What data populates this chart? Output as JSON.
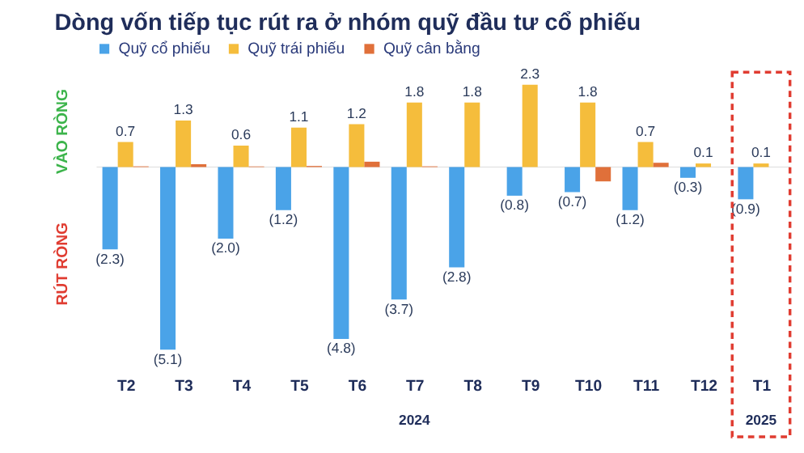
{
  "chart_data": {
    "type": "bar",
    "title": "Dòng vốn tiếp tục rút ra ở nhóm quỹ đầu tư cổ phiếu",
    "categories": [
      "T2",
      "T3",
      "T4",
      "T5",
      "T6",
      "T7",
      "T8",
      "T9",
      "T10",
      "T11",
      "T12",
      "T1"
    ],
    "series": [
      {
        "name": "Quỹ cổ phiếu",
        "color": "#4aa3e8",
        "values": [
          -2.3,
          -5.1,
          -2.0,
          -1.2,
          -4.8,
          -3.7,
          -2.8,
          -0.8,
          -0.7,
          -1.2,
          -0.3,
          -0.9
        ],
        "value_labels": [
          "(2.3)",
          "(5.1)",
          "(2.0)",
          "(1.2)",
          "(4.8)",
          "(3.7)",
          "(2.8)",
          "(0.8)",
          "(0.7)",
          "(1.2)",
          "(0.3)",
          "(0.9)"
        ]
      },
      {
        "name": "Quỹ trái phiếu",
        "color": "#f5bd3c",
        "values": [
          0.7,
          1.3,
          0.6,
          1.1,
          1.2,
          1.8,
          1.8,
          2.3,
          1.8,
          0.7,
          0.1,
          0.1
        ],
        "value_labels": [
          "0.7",
          "1.3",
          "0.6",
          "1.1",
          "1.2",
          "1.8",
          "1.8",
          "2.3",
          "1.8",
          "0.7",
          "0.1",
          "0.1"
        ]
      },
      {
        "name": "Quỹ cân bằng",
        "color": "#e0703a",
        "values": [
          0.02,
          0.08,
          0.02,
          0.03,
          0.15,
          0.02,
          0.0,
          0.0,
          -0.4,
          0.12,
          0.0,
          0.0
        ],
        "value_labels": [
          null,
          null,
          null,
          null,
          null,
          null,
          null,
          null,
          null,
          null,
          null,
          null
        ]
      }
    ],
    "annotations": [
      "VÀO RÒNG",
      "RÚT RÒNG",
      "2024",
      "2025"
    ],
    "legend": "top",
    "grid": false
  }
}
